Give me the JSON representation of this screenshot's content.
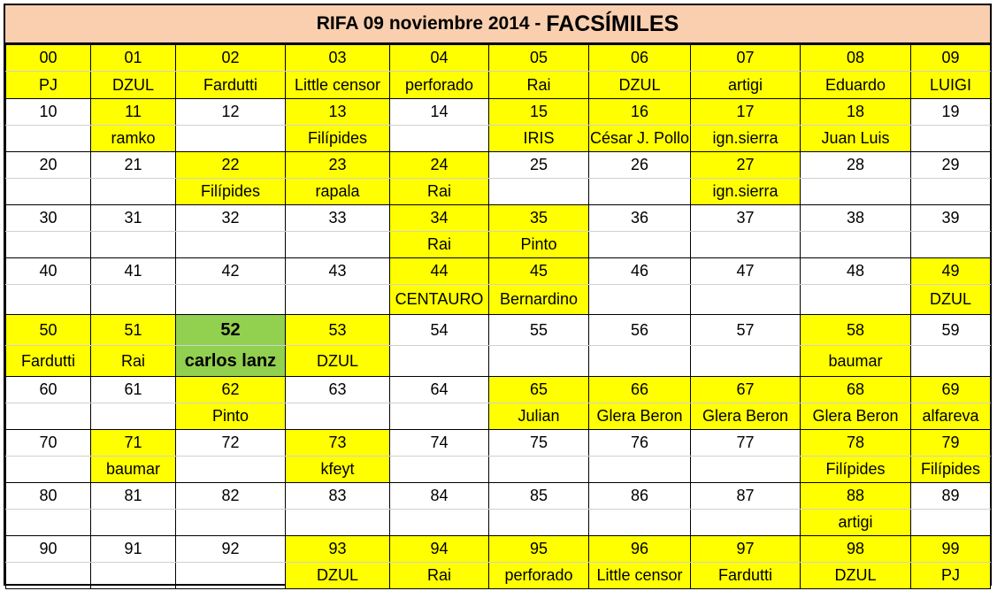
{
  "title": {
    "main": "RIFA 09 noviembre 2014",
    "separator": " - ",
    "accent": "FACSÍMILES"
  },
  "colors": {
    "header_bg": "#f9cfb0",
    "sold": "#ffff00",
    "winner": "#92d050",
    "free": "#ffffff"
  },
  "winner_number": "52",
  "numbers": [
    {
      "n": "00",
      "name": "PJ"
    },
    {
      "n": "01",
      "name": "DZUL"
    },
    {
      "n": "02",
      "name": "Fardutti"
    },
    {
      "n": "03",
      "name": "Little censor"
    },
    {
      "n": "04",
      "name": "perforado"
    },
    {
      "n": "05",
      "name": "Rai"
    },
    {
      "n": "06",
      "name": "DZUL"
    },
    {
      "n": "07",
      "name": "artigi"
    },
    {
      "n": "08",
      "name": "Eduardo"
    },
    {
      "n": "09",
      "name": "LUIGI"
    },
    {
      "n": "10",
      "name": ""
    },
    {
      "n": "11",
      "name": "ramko"
    },
    {
      "n": "12",
      "name": ""
    },
    {
      "n": "13",
      "name": "Filípides"
    },
    {
      "n": "14",
      "name": ""
    },
    {
      "n": "15",
      "name": "IRIS"
    },
    {
      "n": "16",
      "name": "César J. Pollo"
    },
    {
      "n": "17",
      "name": "ign.sierra"
    },
    {
      "n": "18",
      "name": "Juan Luis"
    },
    {
      "n": "19",
      "name": ""
    },
    {
      "n": "20",
      "name": ""
    },
    {
      "n": "21",
      "name": ""
    },
    {
      "n": "22",
      "name": "Filípides"
    },
    {
      "n": "23",
      "name": "rapala"
    },
    {
      "n": "24",
      "name": "Rai"
    },
    {
      "n": "25",
      "name": ""
    },
    {
      "n": "26",
      "name": ""
    },
    {
      "n": "27",
      "name": "ign.sierra"
    },
    {
      "n": "28",
      "name": ""
    },
    {
      "n": "29",
      "name": ""
    },
    {
      "n": "30",
      "name": ""
    },
    {
      "n": "31",
      "name": ""
    },
    {
      "n": "32",
      "name": ""
    },
    {
      "n": "33",
      "name": ""
    },
    {
      "n": "34",
      "name": "Rai"
    },
    {
      "n": "35",
      "name": "Pinto"
    },
    {
      "n": "36",
      "name": ""
    },
    {
      "n": "37",
      "name": ""
    },
    {
      "n": "38",
      "name": ""
    },
    {
      "n": "39",
      "name": ""
    },
    {
      "n": "40",
      "name": ""
    },
    {
      "n": "41",
      "name": ""
    },
    {
      "n": "42",
      "name": ""
    },
    {
      "n": "43",
      "name": ""
    },
    {
      "n": "44",
      "name": "CENTAURO"
    },
    {
      "n": "45",
      "name": "Bernardino"
    },
    {
      "n": "46",
      "name": ""
    },
    {
      "n": "47",
      "name": ""
    },
    {
      "n": "48",
      "name": ""
    },
    {
      "n": "49",
      "name": "DZUL"
    },
    {
      "n": "50",
      "name": "Fardutti"
    },
    {
      "n": "51",
      "name": "Rai"
    },
    {
      "n": "52",
      "name": "carlos lanz"
    },
    {
      "n": "53",
      "name": "DZUL"
    },
    {
      "n": "54",
      "name": ""
    },
    {
      "n": "55",
      "name": ""
    },
    {
      "n": "56",
      "name": ""
    },
    {
      "n": "57",
      "name": ""
    },
    {
      "n": "58",
      "name": "baumar"
    },
    {
      "n": "59",
      "name": ""
    },
    {
      "n": "60",
      "name": ""
    },
    {
      "n": "61",
      "name": ""
    },
    {
      "n": "62",
      "name": "Pinto"
    },
    {
      "n": "63",
      "name": ""
    },
    {
      "n": "64",
      "name": ""
    },
    {
      "n": "65",
      "name": "Julian"
    },
    {
      "n": "66",
      "name": "Glera Beron"
    },
    {
      "n": "67",
      "name": "Glera Beron"
    },
    {
      "n": "68",
      "name": "Glera Beron"
    },
    {
      "n": "69",
      "name": "alfareva"
    },
    {
      "n": "70",
      "name": ""
    },
    {
      "n": "71",
      "name": "baumar"
    },
    {
      "n": "72",
      "name": ""
    },
    {
      "n": "73",
      "name": "kfeyt"
    },
    {
      "n": "74",
      "name": ""
    },
    {
      "n": "75",
      "name": ""
    },
    {
      "n": "76",
      "name": ""
    },
    {
      "n": "77",
      "name": ""
    },
    {
      "n": "78",
      "name": "Filípides"
    },
    {
      "n": "79",
      "name": "Filípides"
    },
    {
      "n": "80",
      "name": ""
    },
    {
      "n": "81",
      "name": ""
    },
    {
      "n": "82",
      "name": ""
    },
    {
      "n": "83",
      "name": ""
    },
    {
      "n": "84",
      "name": ""
    },
    {
      "n": "85",
      "name": ""
    },
    {
      "n": "86",
      "name": ""
    },
    {
      "n": "87",
      "name": ""
    },
    {
      "n": "88",
      "name": "artigi"
    },
    {
      "n": "89",
      "name": ""
    },
    {
      "n": "90",
      "name": ""
    },
    {
      "n": "91",
      "name": ""
    },
    {
      "n": "92",
      "name": ""
    },
    {
      "n": "93",
      "name": "DZUL"
    },
    {
      "n": "94",
      "name": "Rai"
    },
    {
      "n": "95",
      "name": "perforado"
    },
    {
      "n": "96",
      "name": "Little censor"
    },
    {
      "n": "97",
      "name": "Fardutti"
    },
    {
      "n": "98",
      "name": "DZUL"
    },
    {
      "n": "99",
      "name": "PJ"
    }
  ]
}
